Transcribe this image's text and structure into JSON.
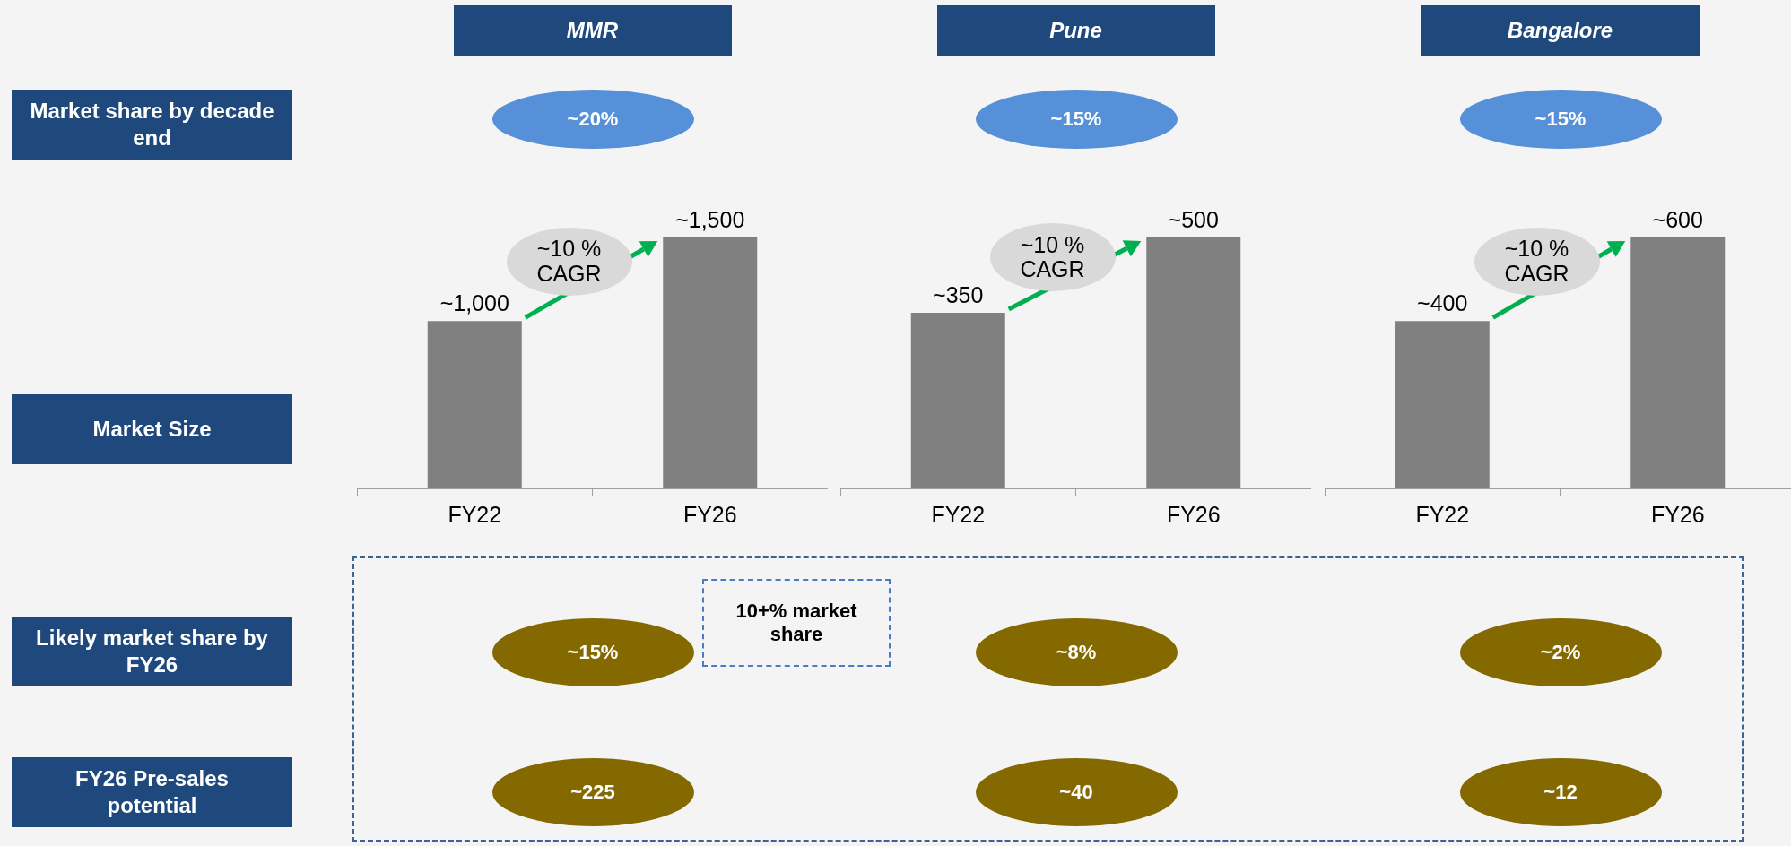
{
  "chart_data": [
    {
      "type": "other",
      "annotations": [
        "Market share by decade end",
        "Market Size",
        "Likely market share by FY26",
        "FY26 Pre-sales potential"
      ]
    },
    {
      "type": "bar",
      "title": "MMR",
      "categories": [
        "FY22",
        "FY26"
      ],
      "values": [
        1000,
        1500
      ],
      "value_labels": [
        "~1,000",
        "~1,500"
      ],
      "color": "#808080",
      "annotations": [
        "~20%",
        "~10 % CAGR",
        "~15%",
        "~225",
        "10+% market share"
      ]
    },
    {
      "type": "bar",
      "title": "Pune",
      "categories": [
        "FY22",
        "FY26"
      ],
      "values": [
        350,
        500
      ],
      "value_labels": [
        "~350",
        "~500"
      ],
      "color": "#808080",
      "annotations": [
        "~15%",
        "~10 % CAGR",
        "~8%",
        "~40"
      ]
    },
    {
      "type": "bar",
      "title": "Bangalore",
      "categories": [
        "FY22",
        "FY26"
      ],
      "values": [
        400,
        600
      ],
      "value_labels": [
        "~400",
        "~600"
      ],
      "color": "#808080",
      "annotations": [
        "~15%",
        "~10 % CAGR",
        "~2%",
        "~12"
      ]
    }
  ]
}
